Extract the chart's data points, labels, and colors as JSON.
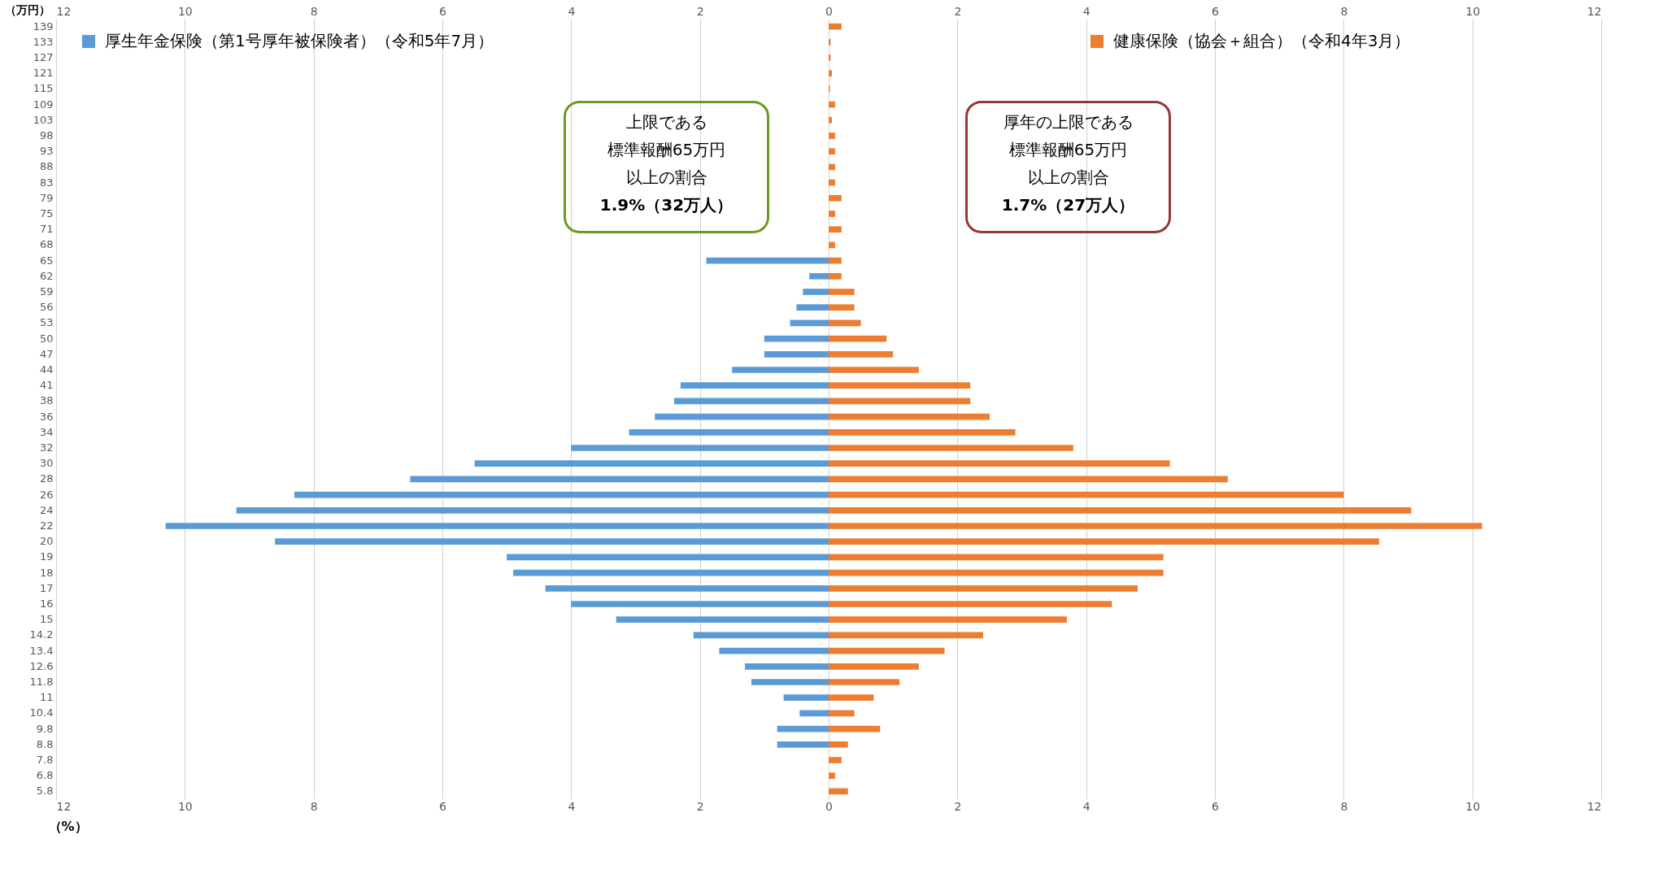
{
  "chart_data": {
    "type": "bar",
    "orientation": "horizontal",
    "categories": [
      "139",
      "133",
      "127",
      "121",
      "115",
      "109",
      "103",
      "98",
      "93",
      "88",
      "83",
      "79",
      "75",
      "71",
      "68",
      "65",
      "62",
      "59",
      "56",
      "53",
      "50",
      "47",
      "44",
      "41",
      "38",
      "36",
      "34",
      "32",
      "30",
      "28",
      "26",
      "24",
      "22",
      "20",
      "19",
      "18",
      "17",
      "16",
      "15",
      "14.2",
      "13.4",
      "12.6",
      "11.8",
      "11",
      "10.4",
      "9.8",
      "8.8",
      "7.8",
      "6.8",
      "5.8"
    ],
    "series": [
      {
        "name": "厚生年金保険（第1号厚年被保険者）（令和5年7月）",
        "color": "#5b9bd5",
        "values": [
          null,
          null,
          null,
          null,
          null,
          null,
          null,
          null,
          null,
          null,
          null,
          null,
          null,
          null,
          null,
          -1.9,
          -0.3,
          -0.4,
          -0.5,
          -0.6,
          -1.0,
          -1.0,
          -1.5,
          -2.3,
          -2.4,
          -2.7,
          -3.1,
          -4.0,
          -5.5,
          -6.5,
          -8.3,
          -9.2,
          -10.3,
          -8.6,
          -5.0,
          -4.9,
          -4.4,
          -4.0,
          -3.3,
          -2.1,
          -1.7,
          -1.3,
          -1.2,
          -0.7,
          -0.45,
          -0.8,
          -0.8,
          null,
          null,
          null
        ]
      },
      {
        "name": "健康保険（協会＋組合）（令和4年3月）",
        "color": "#ed7d31",
        "values": [
          0.2,
          0.03,
          0.03,
          0.05,
          0.02,
          0.1,
          0.05,
          0.1,
          0.1,
          0.1,
          0.1,
          0.2,
          0.1,
          0.2,
          0.1,
          0.2,
          0.2,
          0.4,
          0.4,
          0.5,
          0.9,
          1.0,
          1.4,
          2.2,
          2.2,
          2.5,
          2.9,
          3.8,
          5.3,
          6.2,
          8.0,
          9.05,
          10.15,
          8.55,
          5.2,
          5.2,
          4.8,
          4.4,
          3.7,
          2.4,
          1.8,
          1.4,
          1.1,
          0.7,
          0.4,
          0.8,
          0.3,
          0.2,
          0.1,
          0.3
        ]
      }
    ],
    "xlim": [
      -12,
      12
    ],
    "xticks": [
      {
        "value": -12,
        "label": "12"
      },
      {
        "value": -10,
        "label": "10"
      },
      {
        "value": -8,
        "label": "8"
      },
      {
        "value": -6,
        "label": "6"
      },
      {
        "value": -4,
        "label": "4"
      },
      {
        "value": -2,
        "label": "2"
      },
      0,
      2,
      4,
      6,
      8,
      10,
      12
    ],
    "x2lim": [
      -12,
      12
    ],
    "x2ticks": [
      {
        "value": -12,
        "label": "12"
      },
      {
        "value": -10,
        "label": "10"
      },
      {
        "value": -8,
        "label": "8"
      },
      {
        "value": -6,
        "label": "6"
      },
      {
        "value": -4,
        "label": "4"
      },
      {
        "value": -2,
        "label": "2"
      },
      0,
      2,
      4,
      6,
      8,
      10,
      12
    ],
    "xlabel": "（%）",
    "ylabel": "（万円）",
    "grid": "x",
    "legend": "top",
    "stacked": true,
    "annotations": [
      "上限である",
      "標準報酬65万円",
      "以上の割合",
      "1.9%（32万人）",
      "厚年の上限である",
      "標準報酬65万円",
      "以上の割合",
      "1.7%（27万人）"
    ]
  }
}
